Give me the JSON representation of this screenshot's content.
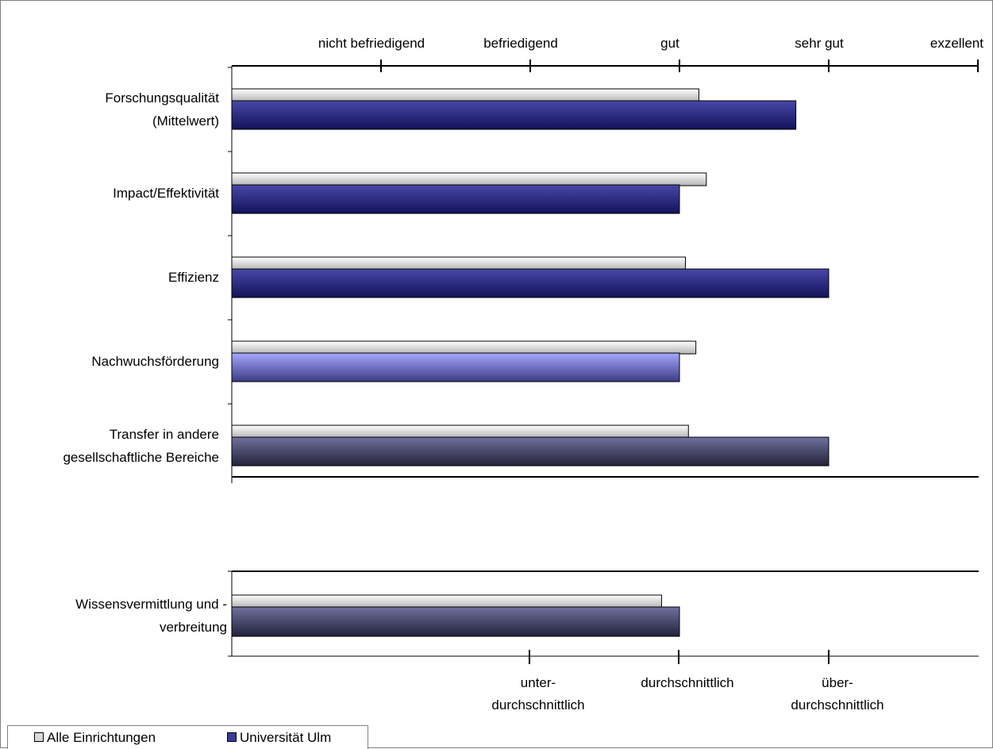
{
  "chart_data": [
    {
      "type": "bar",
      "orientation": "horizontal",
      "top_axis_labels": [
        "nicht befriedigend",
        "befriedigend",
        "gut",
        "sehr gut",
        "exzellent"
      ],
      "xlim": [
        0,
        5
      ],
      "categories": [
        [
          "Forschungsqualität",
          "(Mittelwert)"
        ],
        [
          "Impact/Effektivität"
        ],
        [
          "Effizienz"
        ],
        [
          "Nachwuchsförderung"
        ],
        [
          "Transfer in andere",
          "gesellschaftliche Bereiche"
        ]
      ],
      "series": [
        {
          "name": "Alle Einrichtungen",
          "values": [
            3.13,
            3.18,
            3.04,
            3.11,
            3.06
          ]
        },
        {
          "name": "Universität Ulm",
          "values": [
            3.78,
            3.0,
            4.0,
            3.0,
            4.0
          ]
        }
      ]
    },
    {
      "type": "bar",
      "orientation": "horizontal",
      "bottom_axis_labels": [
        [
          "unter-",
          "durchschnittlich"
        ],
        [
          "durchschnittlich"
        ],
        [
          "über-",
          "durchschnittlich"
        ]
      ],
      "categories": [
        [
          "Wissensvermittlung und -",
          "verbreitung"
        ]
      ],
      "series": [
        {
          "name": "Alle Einrichtungen",
          "values": [
            1.92
          ]
        },
        {
          "name": "Universität Ulm",
          "values": [
            2.0
          ]
        }
      ]
    }
  ],
  "legend": {
    "items": [
      {
        "label": "Alle Einrichtungen",
        "color": "#d9d9d9"
      },
      {
        "label": "Universität Ulm",
        "color": "#3b3b96"
      }
    ]
  }
}
